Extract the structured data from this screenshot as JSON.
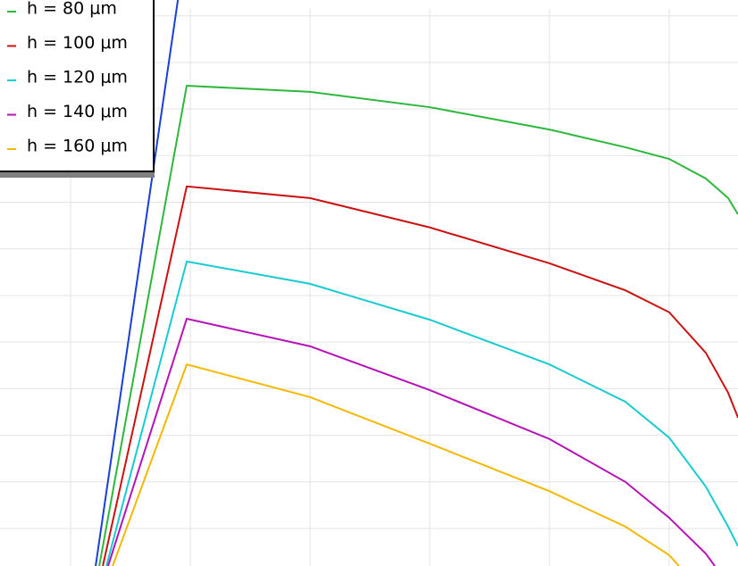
{
  "chart_data": {
    "type": "line",
    "xlim": [
      0.41,
      6.575
    ],
    "ylim": [
      0.195,
      12.34
    ],
    "xticks": [
      1,
      2,
      3,
      4,
      5,
      6
    ],
    "yticks": [
      1,
      2,
      3,
      4,
      5,
      6,
      7,
      8,
      9,
      10,
      11,
      12
    ],
    "grid": true,
    "legend": "upper left",
    "series": [
      {
        "color": "#1a3fd6",
        "x": [
          1.209,
          1.896
        ],
        "values": [
          0.195,
          12.34
        ]
      },
      {
        "name": "h = 80 μm",
        "color": "#2db83d",
        "x": [
          1.239,
          1.97,
          3.0,
          4.0,
          5.0,
          5.634,
          6.0,
          6.306,
          6.493,
          6.575
        ],
        "values": [
          0.195,
          10.5,
          10.37,
          10.04,
          9.56,
          9.18,
          8.93,
          8.51,
          8.09,
          7.74
        ]
      },
      {
        "name": "h = 100 μm",
        "color": "#cc1111",
        "x": [
          1.269,
          1.97,
          3.0,
          4.0,
          5.0,
          5.634,
          6.0,
          6.306,
          6.493,
          6.575
        ],
        "values": [
          0.195,
          8.34,
          8.09,
          7.46,
          6.69,
          6.11,
          5.64,
          4.77,
          3.91,
          3.38
        ]
      },
      {
        "name": "h = 120 μm",
        "color": "#17cbd1",
        "x": [
          1.299,
          1.97,
          3.0,
          4.0,
          5.0,
          5.634,
          6.0,
          6.306,
          6.493,
          6.575
        ],
        "values": [
          0.195,
          6.73,
          6.25,
          5.48,
          4.52,
          3.72,
          2.95,
          1.9,
          1.04,
          0.62
        ]
      },
      {
        "name": "h = 140 μm",
        "color": "#b512b8",
        "x": [
          1.313,
          1.97,
          3.0,
          4.0,
          5.0,
          5.634,
          6.0,
          6.306,
          6.381
        ],
        "values": [
          0.195,
          5.5,
          4.91,
          3.97,
          2.92,
          2.0,
          1.23,
          0.46,
          0.195
        ]
      },
      {
        "name": "h = 160 μm",
        "color": "#f5b800",
        "x": [
          1.351,
          1.97,
          3.0,
          4.0,
          5.0,
          5.634,
          6.0,
          6.082
        ],
        "values": [
          0.195,
          4.52,
          3.82,
          2.82,
          1.8,
          1.04,
          0.43,
          0.195
        ]
      }
    ]
  }
}
